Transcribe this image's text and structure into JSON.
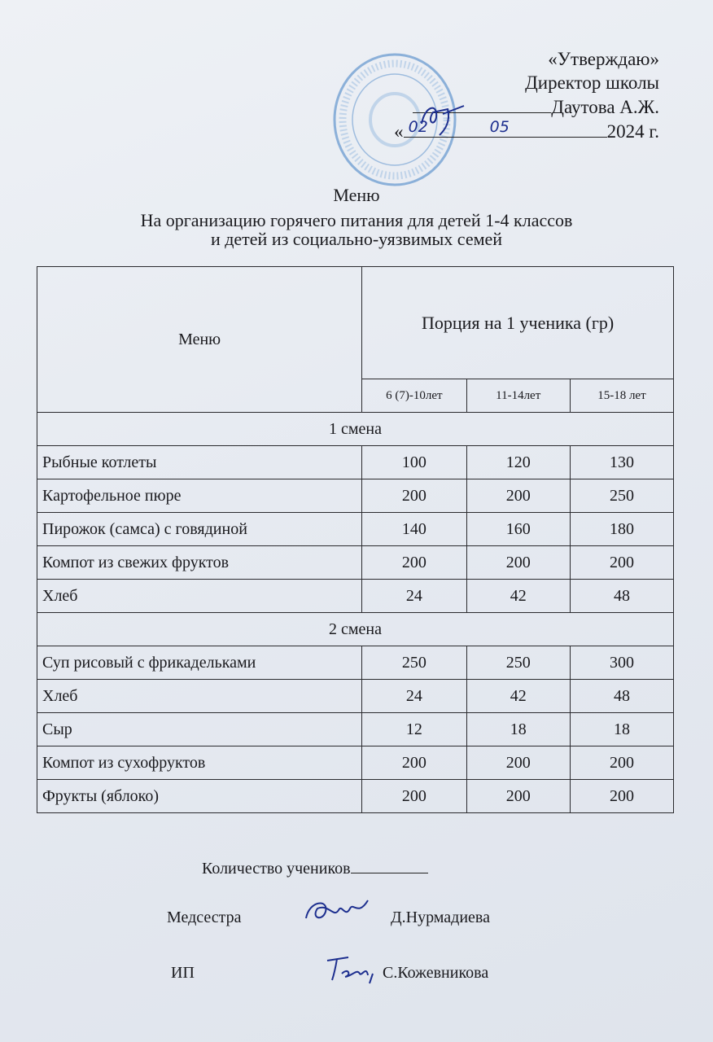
{
  "approval": {
    "line1": "«Утверждаю»",
    "line2": "Директор школы",
    "name": "Даутова А.Ж.",
    "date_prefix": "«",
    "date_day": "02",
    "date_month": "05",
    "year": "2024 г."
  },
  "title": {
    "line1": "Меню",
    "line2": "На организацию горячего питания для детей 1-4 классов",
    "line3": "и детей из социально-уязвимых семей"
  },
  "table": {
    "col_menu": "Меню",
    "col_portion": "Порция на 1 ученика (гр)",
    "age_groups": [
      "6 (7)-10лет",
      "11-14лет",
      "15-18 лет"
    ],
    "shifts": [
      {
        "label": "1 смена",
        "rows": [
          {
            "name": "Рыбные котлеты",
            "values": [
              "100",
              "120",
              "130"
            ]
          },
          {
            "name": "Картофельное пюре",
            "values": [
              "200",
              "200",
              "250"
            ]
          },
          {
            "name": "Пирожок (самса) с говядиной",
            "values": [
              "140",
              "160",
              "180"
            ]
          },
          {
            "name": "Компот из свежих фруктов",
            "values": [
              "200",
              "200",
              "200"
            ]
          },
          {
            "name": "Хлеб",
            "values": [
              "24",
              "42",
              "48"
            ]
          }
        ]
      },
      {
        "label": "2 смена",
        "rows": [
          {
            "name": "Суп рисовый с фрикадельками",
            "values": [
              "250",
              "250",
              "300"
            ]
          },
          {
            "name": "Хлеб",
            "values": [
              "24",
              "42",
              "48"
            ]
          },
          {
            "name": "Сыр",
            "values": [
              "12",
              "18",
              "18"
            ]
          },
          {
            "name": "Компот из сухофруктов",
            "values": [
              "200",
              "200",
              "200"
            ]
          },
          {
            "name": "Фрукты (яблоко)",
            "values": [
              "200",
              "200",
              "200"
            ]
          }
        ]
      }
    ]
  },
  "footer": {
    "students_label": "Количество учеников",
    "nurse_label": "Медсестра",
    "nurse_name": "Д.Нурмадиева",
    "ip_label": "ИП",
    "ip_name": "С.Кожевникова"
  },
  "colors": {
    "ink": "#1a1a1e",
    "stamp": "#4a7fb8",
    "signature": "#1d2f8f"
  }
}
